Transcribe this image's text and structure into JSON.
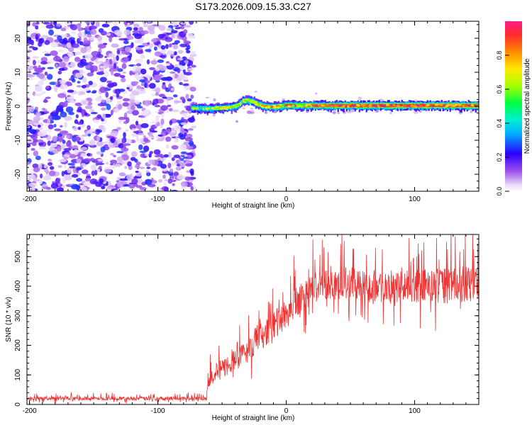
{
  "title": "S173.2026.009.15.33.C27",
  "colorbar_label": "Normalized spectral amplitude",
  "colorbar_ticks": [
    "0.0",
    "0.2",
    "0.4",
    "0.6",
    "0.8"
  ],
  "chart_data": [
    {
      "type": "heatmap",
      "xlabel": "Height of straight line (km)",
      "ylabel": "Frequency (Hz)",
      "xlim": [
        -202,
        150
      ],
      "ylim": [
        -25,
        25
      ],
      "xticks": [
        -200,
        -100,
        0,
        100
      ],
      "xtick_labels": [
        "-200",
        "-100",
        "0",
        "100"
      ],
      "yticks": [
        20,
        10,
        0,
        -10,
        -20
      ],
      "ytick_labels": [
        "20",
        "10",
        "0",
        "-10",
        "-20"
      ],
      "colorbar_range": [
        0,
        1
      ],
      "noise_region_x": [
        -202,
        -72
      ],
      "signal_start_x": -74,
      "signal_trace": {
        "x": [
          -74,
          -65,
          -55,
          -45,
          -38,
          -34,
          -30,
          -26,
          -22,
          -18,
          -12,
          -5,
          0,
          10,
          20,
          50,
          100,
          150
        ],
        "freq": [
          -0.5,
          -0.7,
          -0.6,
          -0.4,
          0.2,
          1.6,
          1.7,
          1.3,
          0.6,
          0.0,
          -0.2,
          0.0,
          0.3,
          0.2,
          0.2,
          0.2,
          0.2,
          0.2
        ],
        "amplitude": [
          0.2,
          0.3,
          0.35,
          0.4,
          0.45,
          0.45,
          0.5,
          0.5,
          0.55,
          0.55,
          0.6,
          0.65,
          0.7,
          0.75,
          0.8,
          0.95,
          0.95,
          0.95
        ]
      }
    },
    {
      "type": "line",
      "xlabel": "Height of straight line (km)",
      "ylabel": "SNR (10 * v/v)",
      "xlim": [
        -202,
        150
      ],
      "ylim": [
        0,
        575
      ],
      "xticks": [
        -200,
        -100,
        0,
        100
      ],
      "xtick_labels": [
        "-200",
        "-100",
        "0",
        "100"
      ],
      "yticks": [
        0,
        100,
        200,
        300,
        400,
        500
      ],
      "ytick_labels": [
        "0",
        "100",
        "200",
        "300",
        "400",
        "500"
      ],
      "color": "#ee3333",
      "series": [
        {
          "name": "SNR",
          "trend_x": [
            -202,
            -62,
            -61,
            -50,
            -40,
            -30,
            -20,
            -10,
            0,
            10,
            20,
            30,
            40,
            50,
            60,
            80,
            100,
            120,
            150
          ],
          "trend_y": [
            20,
            20,
            90,
            120,
            150,
            180,
            230,
            260,
            310,
            350,
            390,
            410,
            410,
            410,
            400,
            400,
            400,
            400,
            410
          ],
          "noise_amplitude_y": [
            12,
            12,
            60,
            60,
            70,
            70,
            80,
            90,
            100,
            100,
            100,
            100,
            100,
            100,
            100,
            100,
            100,
            110,
            110
          ]
        }
      ]
    }
  ]
}
